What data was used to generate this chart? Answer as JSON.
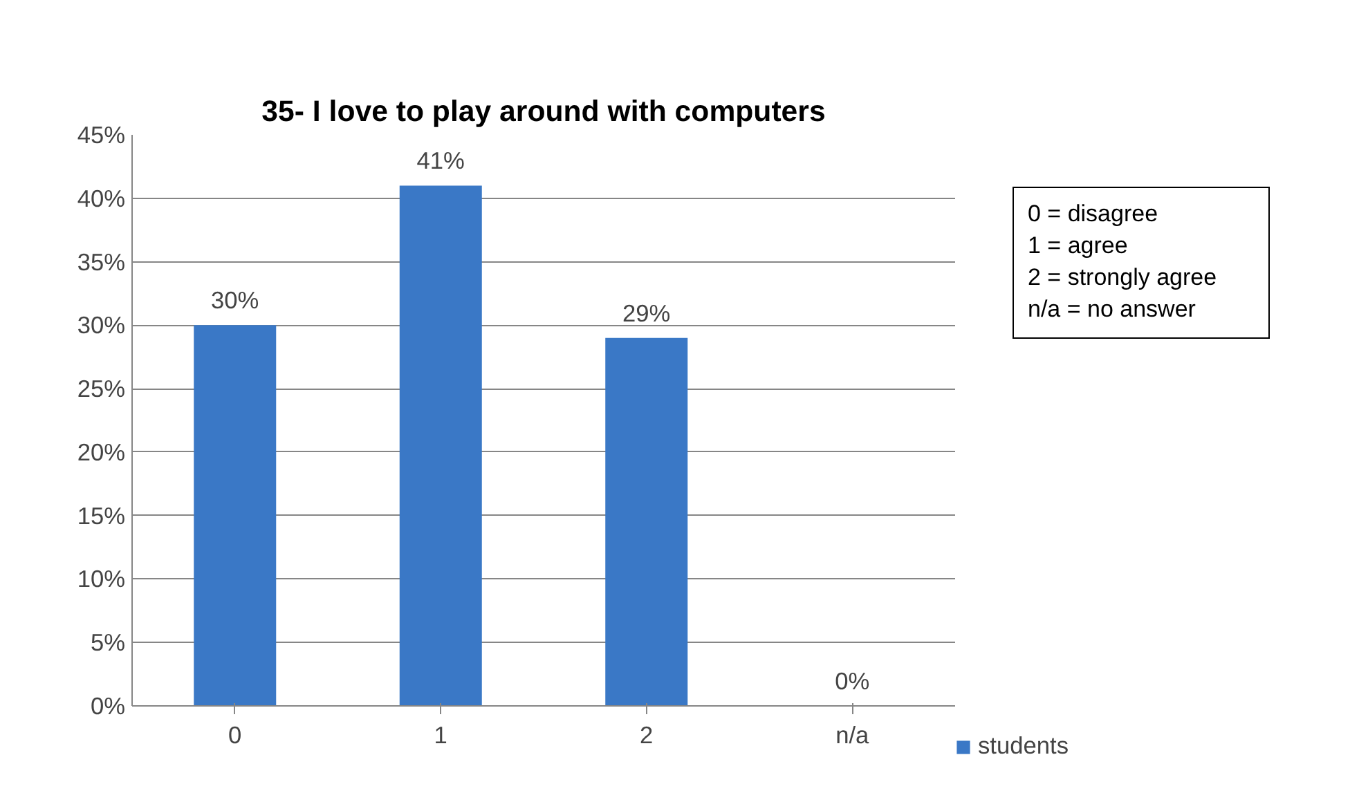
{
  "chart_data": {
    "type": "bar",
    "title": "35- I love to play around with computers",
    "categories": [
      "0",
      "1",
      "2",
      "n/a"
    ],
    "series": [
      {
        "name": "students",
        "color": "#3a78c6",
        "values": [
          30,
          41,
          29,
          0
        ],
        "value_labels": [
          "30%",
          "41%",
          "29%",
          "0%"
        ]
      }
    ],
    "ylim": [
      0,
      45
    ],
    "yticks": [
      {
        "value": 0,
        "label": "0%"
      },
      {
        "value": 5,
        "label": "5%"
      },
      {
        "value": 10,
        "label": "10%"
      },
      {
        "value": 15,
        "label": "15%"
      },
      {
        "value": 20,
        "label": "20%"
      },
      {
        "value": 25,
        "label": "25%"
      },
      {
        "value": 30,
        "label": "30%"
      },
      {
        "value": 35,
        "label": "35%"
      },
      {
        "value": 40,
        "label": "40%"
      },
      {
        "value": 45,
        "label": "45%"
      }
    ],
    "grid": "y",
    "legend": "right",
    "annotations": [
      "0 = disagree\n1 = agree\n2 = strongly agree\nn/a = no answer"
    ]
  }
}
